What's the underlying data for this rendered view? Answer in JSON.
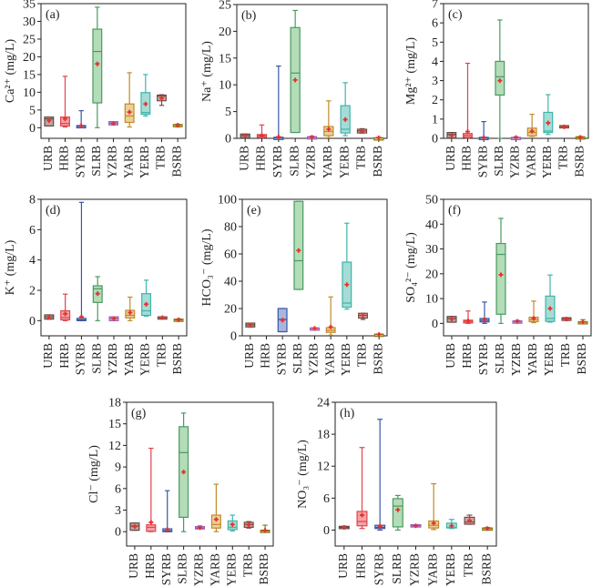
{
  "figure": {
    "categories": [
      "URB",
      "HRB",
      "SYRB",
      "SLRB",
      "YZRB",
      "YARB",
      "YERB",
      "TRB",
      "BSRB"
    ],
    "colors": {
      "URB": {
        "fill": "#b8a8a3",
        "edge": "#5e4a45"
      },
      "HRB": {
        "fill": "#f4a3a6",
        "edge": "#e0434c"
      },
      "SYRB": {
        "fill": "#a9b6dc",
        "edge": "#3a56a5"
      },
      "SLRB": {
        "fill": "#b3dcb8",
        "edge": "#4a9a60"
      },
      "YZRB": {
        "fill": "#cfb3e0",
        "edge": "#9a5cb8"
      },
      "YARB": {
        "fill": "#ecd09a",
        "edge": "#c08a2a"
      },
      "YERB": {
        "fill": "#a6dcd6",
        "edge": "#3fb5a8"
      },
      "TRB": {
        "fill": "#c9a8a6",
        "edge": "#7a4a46"
      },
      "BSRB": {
        "fill": "#d8cc80",
        "edge": "#8a7a1a"
      }
    },
    "mean_marker_color": "#e8302a"
  },
  "chart_data": [
    {
      "type": "box",
      "panel": "(a)",
      "ylabel": "Ca²⁺ (mg/L)",
      "ylim": [
        -3,
        35
      ],
      "yticks": [
        0,
        5,
        10,
        15,
        20,
        25,
        30,
        35
      ],
      "categories": [
        "URB",
        "HRB",
        "SYRB",
        "SLRB",
        "YZRB",
        "YARB",
        "YERB",
        "TRB",
        "BSRB"
      ],
      "series": [
        {
          "name": "URB",
          "min": 0.5,
          "q1": 0.5,
          "median": 2.5,
          "q3": 3.0,
          "max": 3.0,
          "mean": 2.0
        },
        {
          "name": "HRB",
          "min": 0.2,
          "q1": 0.5,
          "median": 1.2,
          "q3": 3.0,
          "max": 14.5,
          "mean": 2.5
        },
        {
          "name": "SYRB",
          "min": 0.0,
          "q1": 0.2,
          "median": 0.4,
          "q3": 0.6,
          "max": 4.8,
          "mean": 0.6
        },
        {
          "name": "SLRB",
          "min": 0.0,
          "q1": 7.0,
          "median": 21.5,
          "q3": 27.8,
          "max": 34.0,
          "mean": 18.0
        },
        {
          "name": "YZRB",
          "min": 0.8,
          "q1": 0.8,
          "median": 1.3,
          "q3": 1.7,
          "max": 1.7,
          "mean": 1.2
        },
        {
          "name": "YARB",
          "min": 0.2,
          "q1": 1.5,
          "median": 3.3,
          "q3": 6.7,
          "max": 15.5,
          "mean": 4.4
        },
        {
          "name": "YERB",
          "min": 3.3,
          "q1": 3.8,
          "median": 4.3,
          "q3": 9.9,
          "max": 15.0,
          "mean": 6.7
        },
        {
          "name": "TRB",
          "min": 6.3,
          "q1": 7.6,
          "median": 8.9,
          "q3": 9.2,
          "max": 9.3,
          "mean": 8.3
        },
        {
          "name": "BSRB",
          "min": 0.2,
          "q1": 0.7,
          "median": 0.8,
          "q3": 0.9,
          "max": 1.0,
          "mean": 0.7
        }
      ]
    },
    {
      "type": "box",
      "panel": "(b)",
      "ylabel": "Na⁺ (mg/L)",
      "ylim": [
        0,
        25
      ],
      "yticks": [
        0,
        5,
        10,
        15,
        20,
        25
      ],
      "categories": [
        "URB",
        "HRB",
        "SYRB",
        "SLRB",
        "YZRB",
        "YARB",
        "YERB",
        "TRB",
        "BSRB"
      ],
      "series": [
        {
          "name": "URB",
          "min": 0.1,
          "q1": 0.1,
          "median": 0.5,
          "q3": 0.8,
          "max": 0.8,
          "mean": 0.5
        },
        {
          "name": "HRB",
          "min": 0.1,
          "q1": 0.2,
          "median": 0.5,
          "q3": 0.7,
          "max": 2.5,
          "mean": 0.5
        },
        {
          "name": "SYRB",
          "min": 0.0,
          "q1": 0.0,
          "median": 0.1,
          "q3": 0.2,
          "max": 13.5,
          "mean": 0.3
        },
        {
          "name": "SLRB",
          "min": 1.1,
          "q1": 1.1,
          "median": 12.2,
          "q3": 20.7,
          "max": 23.9,
          "mean": 10.9
        },
        {
          "name": "YZRB",
          "min": 0.1,
          "q1": 0.1,
          "median": 0.2,
          "q3": 0.3,
          "max": 0.4,
          "mean": 0.2
        },
        {
          "name": "YARB",
          "min": 0.1,
          "q1": 0.5,
          "median": 1.3,
          "q3": 2.2,
          "max": 7.0,
          "mean": 1.7
        },
        {
          "name": "YERB",
          "min": 0.5,
          "q1": 1.0,
          "median": 1.7,
          "q3": 6.1,
          "max": 10.4,
          "mean": 3.5
        },
        {
          "name": "TRB",
          "min": 1.0,
          "q1": 1.0,
          "median": 1.4,
          "q3": 1.7,
          "max": 1.8,
          "mean": 1.3
        },
        {
          "name": "BSRB",
          "min": 0.0,
          "q1": 0.0,
          "median": 0.1,
          "q3": 0.1,
          "max": 0.2,
          "mean": 0.1
        }
      ]
    },
    {
      "type": "box",
      "panel": "(c)",
      "ylabel": "Mg²⁺ (mg/L)",
      "ylim": [
        0,
        7
      ],
      "yticks": [
        0,
        1,
        2,
        3,
        4,
        5,
        6,
        7
      ],
      "categories": [
        "URB",
        "HRB",
        "SYRB",
        "SLRB",
        "YZRB",
        "YARB",
        "YERB",
        "TRB",
        "BSRB"
      ],
      "series": [
        {
          "name": "URB",
          "min": 0.02,
          "q1": 0.02,
          "median": 0.2,
          "q3": 0.3,
          "max": 0.3,
          "mean": 0.15
        },
        {
          "name": "HRB",
          "min": 0.02,
          "q1": 0.05,
          "median": 0.15,
          "q3": 0.25,
          "max": 3.9,
          "mean": 0.35
        },
        {
          "name": "SYRB",
          "min": 0.0,
          "q1": 0.0,
          "median": 0.02,
          "q3": 0.05,
          "max": 0.87,
          "mean": 0.05
        },
        {
          "name": "SLRB",
          "min": 0.0,
          "q1": 2.25,
          "median": 3.2,
          "q3": 4.0,
          "max": 6.15,
          "mean": 3.0
        },
        {
          "name": "YZRB",
          "min": 0.0,
          "q1": 0.0,
          "median": 0.03,
          "q3": 0.05,
          "max": 0.08,
          "mean": 0.04
        },
        {
          "name": "YARB",
          "min": 0.1,
          "q1": 0.13,
          "median": 0.3,
          "q3": 0.53,
          "max": 1.25,
          "mean": 0.37
        },
        {
          "name": "YERB",
          "min": 0.2,
          "q1": 0.3,
          "median": 0.38,
          "q3": 1.35,
          "max": 2.27,
          "mean": 0.8
        },
        {
          "name": "TRB",
          "min": 0.55,
          "q1": 0.57,
          "median": 0.62,
          "q3": 0.66,
          "max": 0.66,
          "mean": 0.6
        },
        {
          "name": "BSRB",
          "min": 0.0,
          "q1": 0.0,
          "median": 0.04,
          "q3": 0.08,
          "max": 0.1,
          "mean": 0.05
        }
      ]
    },
    {
      "type": "box",
      "panel": "(d)",
      "ylabel": "K⁺ (mg/L)",
      "ylim": [
        -1,
        8
      ],
      "yticks": [
        0,
        2,
        4,
        6,
        8
      ],
      "categories": [
        "URB",
        "HRB",
        "SYRB",
        "SLRB",
        "YZRB",
        "YARB",
        "YERB",
        "TRB",
        "BSRB"
      ],
      "series": [
        {
          "name": "URB",
          "min": 0.1,
          "q1": 0.1,
          "median": 0.25,
          "q3": 0.38,
          "max": 0.38,
          "mean": 0.22
        },
        {
          "name": "HRB",
          "min": 0.0,
          "q1": 0.05,
          "median": 0.2,
          "q3": 0.65,
          "max": 1.75,
          "mean": 0.45
        },
        {
          "name": "SYRB",
          "min": 0.0,
          "q1": 0.0,
          "median": 0.05,
          "q3": 0.15,
          "max": 7.8,
          "mean": 0.25
        },
        {
          "name": "SLRB",
          "min": 0.0,
          "q1": 1.2,
          "median": 2.1,
          "q3": 2.3,
          "max": 2.9,
          "mean": 1.78
        },
        {
          "name": "YZRB",
          "min": 0.0,
          "q1": 0.0,
          "median": 0.15,
          "q3": 0.25,
          "max": 0.25,
          "mean": 0.13
        },
        {
          "name": "YARB",
          "min": 0.0,
          "q1": 0.18,
          "median": 0.35,
          "q3": 0.68,
          "max": 1.55,
          "mean": 0.53
        },
        {
          "name": "YERB",
          "min": 0.3,
          "q1": 0.35,
          "median": 0.65,
          "q3": 1.78,
          "max": 2.67,
          "mean": 1.08
        },
        {
          "name": "TRB",
          "min": 0.13,
          "q1": 0.15,
          "median": 0.2,
          "q3": 0.25,
          "max": 0.25,
          "mean": 0.2
        },
        {
          "name": "BSRB",
          "min": 0.0,
          "q1": 0.02,
          "median": 0.06,
          "q3": 0.1,
          "max": 0.12,
          "mean": 0.06
        }
      ]
    },
    {
      "type": "box",
      "panel": "(e)",
      "ylabel": "HCO₃⁻ (mg/L)",
      "ylim": [
        0,
        100
      ],
      "yticks": [
        0,
        20,
        40,
        60,
        80,
        100
      ],
      "categories": [
        "URB",
        "HRB",
        "SYRB",
        "SLRB",
        "YZRB",
        "YARB",
        "YERB",
        "TRB",
        "BSRB"
      ],
      "series": [
        {
          "name": "URB",
          "min": 6.5,
          "q1": 6.5,
          "median": 8.0,
          "q3": 9.3,
          "max": 9.3,
          "mean": 8.0
        },
        {
          "name": "HRB",
          "min": null,
          "q1": null,
          "median": null,
          "q3": null,
          "max": null,
          "mean": null
        },
        {
          "name": "SYRB",
          "min": 3.0,
          "q1": 3.0,
          "median": 12.0,
          "q3": 20.0,
          "max": 20.0,
          "mean": 11.5
        },
        {
          "name": "SLRB",
          "min": 34.0,
          "q1": 34.0,
          "median": 55.0,
          "q3": 98.5,
          "max": 98.5,
          "mean": 62.5
        },
        {
          "name": "YZRB",
          "min": 5.2,
          "q1": 5.2,
          "median": 5.5,
          "q3": 5.8,
          "max": 5.8,
          "mean": 5.5
        },
        {
          "name": "YARB",
          "min": 0.5,
          "q1": 2.5,
          "median": 4.0,
          "q3": 6.0,
          "max": 28.5,
          "mean": 6.5
        },
        {
          "name": "YERB",
          "min": 19.5,
          "q1": 21.0,
          "median": 24.0,
          "q3": 54.0,
          "max": 82.5,
          "mean": 37.5
        },
        {
          "name": "TRB",
          "min": 12.0,
          "q1": 13.0,
          "median": 15.0,
          "q3": 16.5,
          "max": 16.5,
          "mean": 15.0
        },
        {
          "name": "BSRB",
          "min": 0.5,
          "q1": 0.8,
          "median": 1.0,
          "q3": 1.2,
          "max": 1.4,
          "mean": 1.0
        }
      ]
    },
    {
      "type": "box",
      "panel": "(f)",
      "ylabel": "SO₄²⁻ (mg/L)",
      "ylim": [
        -5,
        50
      ],
      "yticks": [
        0,
        10,
        20,
        30,
        40,
        50
      ],
      "categories": [
        "URB",
        "HRB",
        "SYRB",
        "SLRB",
        "YZRB",
        "YARB",
        "YERB",
        "TRB",
        "BSRB"
      ],
      "series": [
        {
          "name": "URB",
          "min": 0.5,
          "q1": 0.5,
          "median": 2.0,
          "q3": 2.8,
          "max": 2.8,
          "mean": 1.8
        },
        {
          "name": "HRB",
          "min": 0.0,
          "q1": 0.2,
          "median": 0.8,
          "q3": 1.3,
          "max": 5.0,
          "mean": 1.0
        },
        {
          "name": "SYRB",
          "min": 0.0,
          "q1": 0.6,
          "median": 1.2,
          "q3": 2.0,
          "max": 8.6,
          "mean": 1.5
        },
        {
          "name": "SLRB",
          "min": 0.0,
          "q1": 3.7,
          "median": 27.8,
          "q3": 32.2,
          "max": 42.3,
          "mean": 19.6
        },
        {
          "name": "YZRB",
          "min": 0.5,
          "q1": 0.5,
          "median": 0.8,
          "q3": 1.0,
          "max": 1.2,
          "mean": 0.8
        },
        {
          "name": "YARB",
          "min": 0.3,
          "q1": 0.7,
          "median": 1.5,
          "q3": 2.5,
          "max": 9.0,
          "mean": 2.0
        },
        {
          "name": "YERB",
          "min": 0.5,
          "q1": 0.8,
          "median": 2.0,
          "q3": 11.0,
          "max": 19.5,
          "mean": 6.0
        },
        {
          "name": "TRB",
          "min": 1.2,
          "q1": 1.2,
          "median": 1.9,
          "q3": 2.3,
          "max": 2.3,
          "mean": 1.8
        },
        {
          "name": "BSRB",
          "min": 0.2,
          "q1": 0.3,
          "median": 0.5,
          "q3": 0.7,
          "max": 1.5,
          "mean": 0.6
        }
      ]
    },
    {
      "type": "box",
      "panel": "(g)",
      "ylabel": "Cl⁻ (mg/L)",
      "ylim": [
        -2,
        18
      ],
      "yticks": [
        0,
        3,
        6,
        9,
        12,
        15,
        18
      ],
      "categories": [
        "URB",
        "HRB",
        "SYRB",
        "SLRB",
        "YZRB",
        "YARB",
        "YERB",
        "TRB",
        "BSRB"
      ],
      "series": [
        {
          "name": "URB",
          "min": 0.2,
          "q1": 0.2,
          "median": 0.8,
          "q3": 1.2,
          "max": 1.2,
          "mean": 0.7
        },
        {
          "name": "HRB",
          "min": 0.0,
          "q1": 0.05,
          "median": 0.6,
          "q3": 0.95,
          "max": 11.6,
          "mean": 1.3
        },
        {
          "name": "SYRB",
          "min": 0.0,
          "q1": 0.0,
          "median": 0.1,
          "q3": 0.4,
          "max": 5.7,
          "mean": 0.3
        },
        {
          "name": "SLRB",
          "min": 0.0,
          "q1": 2.0,
          "median": 11.0,
          "q3": 14.6,
          "max": 16.5,
          "mean": 8.3
        },
        {
          "name": "YZRB",
          "min": 0.4,
          "q1": 0.4,
          "median": 0.5,
          "q3": 0.7,
          "max": 0.8,
          "mean": 0.55
        },
        {
          "name": "YARB",
          "min": 0.0,
          "q1": 0.5,
          "median": 1.0,
          "q3": 2.3,
          "max": 6.6,
          "mean": 1.7
        },
        {
          "name": "YERB",
          "min": 0.1,
          "q1": 0.3,
          "median": 0.6,
          "q3": 1.5,
          "max": 2.3,
          "mean": 1.0
        },
        {
          "name": "TRB",
          "min": 0.5,
          "q1": 0.6,
          "median": 1.0,
          "q3": 1.3,
          "max": 1.4,
          "mean": 0.95
        },
        {
          "name": "BSRB",
          "min": 0.0,
          "q1": 0.0,
          "median": 0.1,
          "q3": 0.2,
          "max": 0.9,
          "mean": 0.2
        }
      ]
    },
    {
      "type": "box",
      "panel": "(h)",
      "ylabel": "NO₃⁻ (mg/L)",
      "ylim": [
        -3,
        24
      ],
      "yticks": [
        0,
        6,
        12,
        18,
        24
      ],
      "categories": [
        "URB",
        "HRB",
        "SYRB",
        "SLRB",
        "YZRB",
        "YARB",
        "YERB",
        "TRB",
        "BSRB"
      ],
      "series": [
        {
          "name": "URB",
          "min": 0.3,
          "q1": 0.3,
          "median": 0.5,
          "q3": 0.7,
          "max": 0.7,
          "mean": 0.5
        },
        {
          "name": "HRB",
          "min": 0.3,
          "q1": 0.8,
          "median": 1.6,
          "q3": 3.5,
          "max": 15.5,
          "mean": 2.8
        },
        {
          "name": "SYRB",
          "min": 0.0,
          "q1": 0.3,
          "median": 0.5,
          "q3": 0.9,
          "max": 20.8,
          "mean": 0.7
        },
        {
          "name": "SLRB",
          "min": 0.0,
          "q1": 0.6,
          "median": 4.5,
          "q3": 5.9,
          "max": 6.5,
          "mean": 3.8
        },
        {
          "name": "YZRB",
          "min": 0.6,
          "q1": 0.6,
          "median": 0.8,
          "q3": 1.0,
          "max": 1.0,
          "mean": 0.8
        },
        {
          "name": "YARB",
          "min": 0.1,
          "q1": 0.4,
          "median": 0.9,
          "q3": 1.7,
          "max": 8.7,
          "mean": 1.3
        },
        {
          "name": "YERB",
          "min": 0.3,
          "q1": 0.4,
          "median": 0.5,
          "q3": 1.3,
          "max": 2.0,
          "mean": 0.8
        },
        {
          "name": "TRB",
          "min": 1.1,
          "q1": 1.1,
          "median": 1.5,
          "q3": 2.4,
          "max": 2.8,
          "mean": 1.8
        },
        {
          "name": "BSRB",
          "min": 0.1,
          "q1": 0.15,
          "median": 0.3,
          "q3": 0.4,
          "max": 0.5,
          "mean": 0.3
        }
      ]
    }
  ]
}
